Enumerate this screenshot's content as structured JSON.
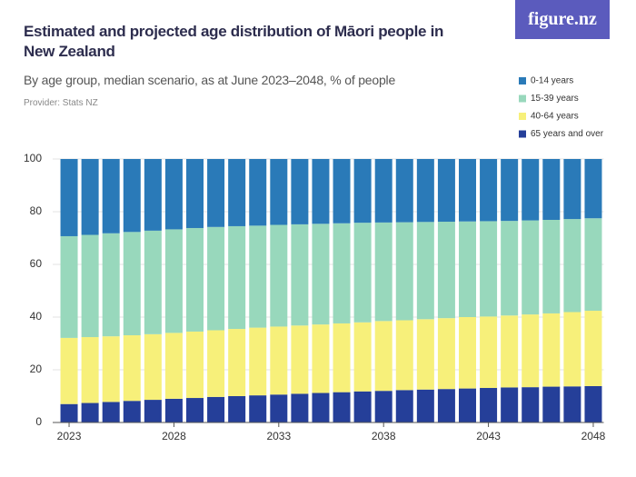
{
  "logo": "figure.nz",
  "chart_data": {
    "type": "stacked-bar",
    "title": "Estimated and projected age distribution of Māori people in New Zealand",
    "subtitle": "By age group, median scenario, as at June 2023–2048, % of people",
    "provider": "Provider: Stats NZ",
    "categories": [
      "2023",
      null,
      null,
      null,
      null,
      "2028",
      null,
      null,
      null,
      null,
      "2033",
      null,
      null,
      null,
      null,
      "2038",
      null,
      null,
      null,
      null,
      "2043",
      null,
      null,
      null,
      null,
      "2048"
    ],
    "series": [
      {
        "name": "65 years and over",
        "color": "#253f99",
        "values": [
          7.0,
          7.4,
          7.8,
          8.2,
          8.6,
          9.0,
          9.3,
          9.7,
          10.0,
          10.3,
          10.6,
          10.9,
          11.2,
          11.5,
          11.8,
          12.0,
          12.3,
          12.5,
          12.7,
          12.9,
          13.1,
          13.3,
          13.4,
          13.6,
          13.7,
          13.8
        ]
      },
      {
        "name": "40-64 years",
        "color": "#f7f07a",
        "values": [
          25.1,
          25.0,
          24.9,
          24.9,
          24.9,
          25.0,
          25.2,
          25.3,
          25.5,
          25.7,
          25.8,
          25.9,
          26.0,
          26.1,
          26.2,
          26.5,
          26.5,
          26.7,
          26.9,
          27.1,
          27.1,
          27.3,
          27.6,
          27.8,
          28.2,
          28.6
        ]
      },
      {
        "name": "15-39 years",
        "color": "#98d8bc",
        "values": [
          38.6,
          38.8,
          39.1,
          39.2,
          39.3,
          39.3,
          39.3,
          39.2,
          39.0,
          38.7,
          38.6,
          38.4,
          38.2,
          38.0,
          37.8,
          37.4,
          37.2,
          36.9,
          36.6,
          36.3,
          36.2,
          35.9,
          35.7,
          35.5,
          35.3,
          35.1
        ]
      },
      {
        "name": "0-14 years",
        "color": "#2a7ab8",
        "values": [
          29.3,
          28.8,
          28.2,
          27.7,
          27.2,
          26.7,
          26.2,
          25.8,
          25.5,
          25.3,
          25.0,
          24.8,
          24.6,
          24.4,
          24.2,
          24.1,
          24.0,
          23.9,
          23.8,
          23.7,
          23.6,
          23.5,
          23.3,
          23.1,
          22.8,
          22.5
        ]
      }
    ],
    "ylim": [
      0,
      100
    ],
    "yticks": [
      0,
      20,
      40,
      60,
      80,
      100
    ],
    "grid": true
  }
}
